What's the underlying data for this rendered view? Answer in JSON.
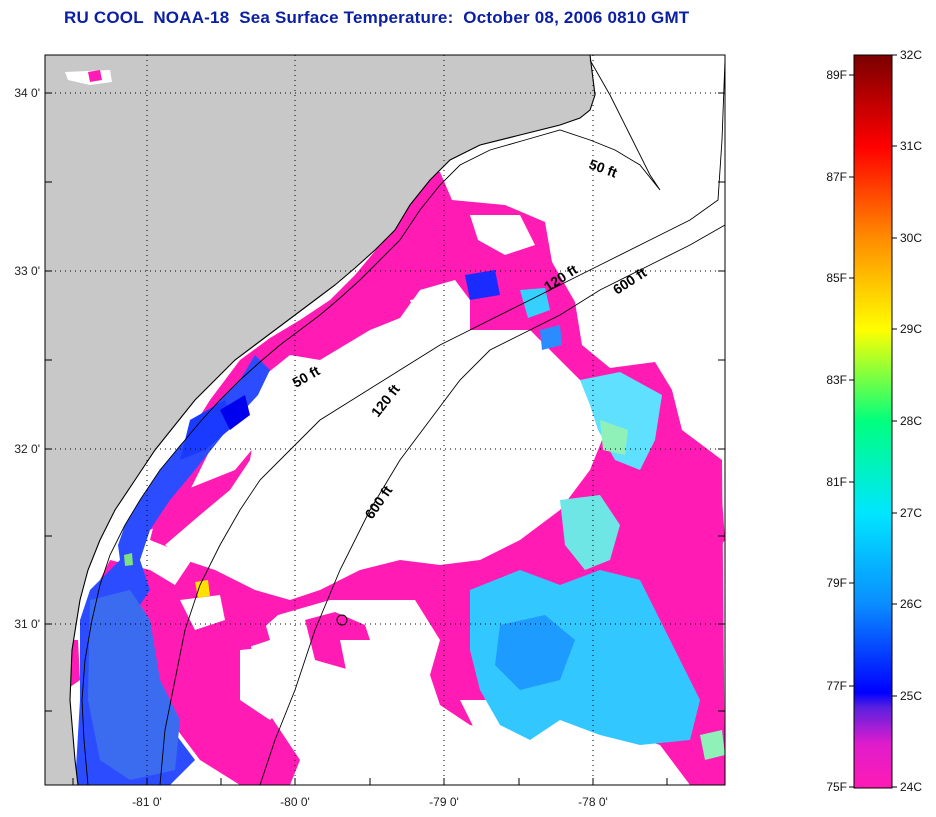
{
  "title": "RU COOL  NOAA-18  Sea Surface Temperature:  October 08, 2006 0810 GMT",
  "map": {
    "lat_labels": [
      "34 0'",
      "33 0'",
      "32 0'",
      "31 0'"
    ],
    "lon_labels": [
      "-81 0'",
      "-80 0'",
      "-79 0'",
      "-78 0'"
    ],
    "lat_range": [
      30.15,
      34.2
    ],
    "lon_range": [
      -81.6,
      -77.3
    ],
    "grid": "dotted",
    "land_color": "#c8c8c8",
    "cloud_mask_color": "#ffffff",
    "contours": [
      {
        "label": "50 ft"
      },
      {
        "label": "120 ft"
      },
      {
        "label": "600 ft"
      }
    ]
  },
  "colorbar": {
    "fahrenheit_labels": [
      "89F",
      "87F",
      "85F",
      "83F",
      "81F",
      "79F",
      "77F",
      "75F"
    ],
    "celsius_labels": [
      "32C",
      "31C",
      "30C",
      "29C",
      "28C",
      "27C",
      "26C",
      "25C",
      "24C"
    ],
    "range_c": [
      24,
      32
    ],
    "colors": [
      "#ff1bb4",
      "#0000ff",
      "#00e6ff",
      "#00ff7f",
      "#ffff00",
      "#ff8c00",
      "#ff0000",
      "#7a0000"
    ]
  }
}
